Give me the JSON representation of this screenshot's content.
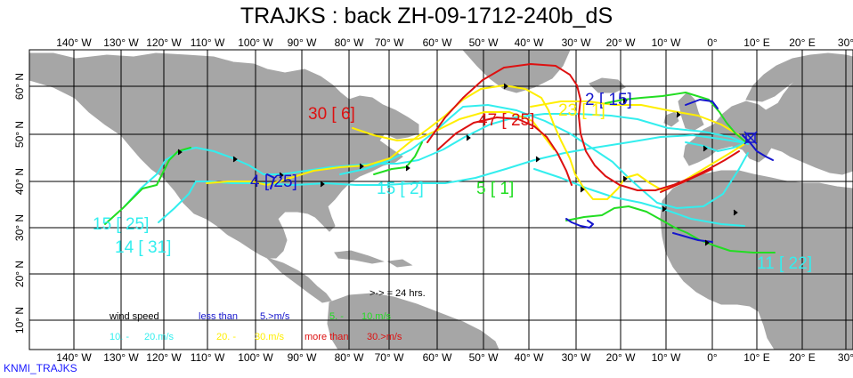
{
  "title": "TRAJKS : back ZH-09-1712-240b_dS",
  "footer": "KNMI_TRAJKS",
  "colors": {
    "ocean": "#ffffff",
    "land": "#a6a6a6",
    "grid": "#000000",
    "blue": "#1515cc",
    "green": "#22dd22",
    "cyan": "#33eeee",
    "yellow": "#ffee00",
    "red": "#dd1111"
  },
  "longitude_labels": [
    "140° W",
    "130° W",
    "120° W",
    "110° W",
    "100° W",
    "90° W",
    "80° W",
    "70° W",
    "60° W",
    "50° W",
    "40° W",
    "30° W",
    "20° W",
    "10° W",
    "0°",
    "10° E",
    "20° E",
    "30°"
  ],
  "latitude_labels": [
    "60° N",
    "50° N",
    "40° N",
    "30° N",
    "20° N",
    "10° N"
  ],
  "trajectory_labels": [
    {
      "text": "2 [ 15]",
      "color": "blue"
    },
    {
      "text": "30 [ 6]",
      "color": "red"
    },
    {
      "text": "47 [ 25]",
      "color": "red"
    },
    {
      "text": "23 [ 1]",
      "color": "yellow"
    },
    {
      "text": "4 [ 25]",
      "color": "blue"
    },
    {
      "text": "15 [ 2]",
      "color": "cyan"
    },
    {
      "text": "5 [ 1]",
      "color": "green"
    },
    {
      "text": "15 [ 25]",
      "color": "cyan"
    },
    {
      "text": "14 [ 31]",
      "color": "cyan"
    },
    {
      "text": "11 [ 22]",
      "color": "cyan"
    }
  ],
  "arrow_note": ">-> = 24 hrs.",
  "legend": {
    "wind_speed": "wind speed",
    "less_than": "less than",
    "less_than_value": "5.>m/s",
    "green_range": "5. -",
    "green_value": "10.m/s",
    "cyan_range": "10. -",
    "cyan_value": "20.m/s",
    "yellow_range": "20. -",
    "yellow_value": "30.m/s",
    "more_than": "more than",
    "more_than_value": "30.>m/s"
  }
}
